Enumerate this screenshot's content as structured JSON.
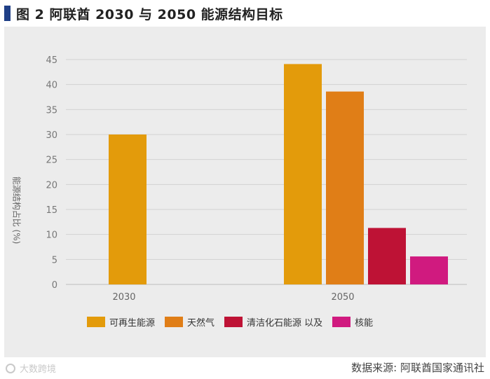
{
  "title": "图 2  阿联酋 2030 与 2050 能源结构目标",
  "source": "数据来源: 阿联酋国家通讯社",
  "watermark": "大数跨境",
  "colors": {
    "title_mark": "#1f3f86",
    "panel_bg": "#ececec"
  },
  "chart_data": {
    "type": "bar",
    "ylabel": "能源结构占比 (%)",
    "ylim": [
      0,
      45
    ],
    "yticks": [
      0,
      5,
      10,
      15,
      20,
      25,
      30,
      35,
      40,
      45
    ],
    "grid": true,
    "legend_position": "bottom",
    "categories": [
      "2030",
      "2050"
    ],
    "series": [
      {
        "name": "可再生能源",
        "color": "#e39b0b",
        "values": [
          30,
          44.1
        ]
      },
      {
        "name": "天然气",
        "color": "#e07e17",
        "values": [
          null,
          38.6
        ]
      },
      {
        "name": "清洁化石能源  以及",
        "color": "#be1235",
        "values": [
          null,
          11.3
        ]
      },
      {
        "name": "核能",
        "color": "#d01a7f",
        "values": [
          null,
          5.6
        ]
      }
    ]
  }
}
